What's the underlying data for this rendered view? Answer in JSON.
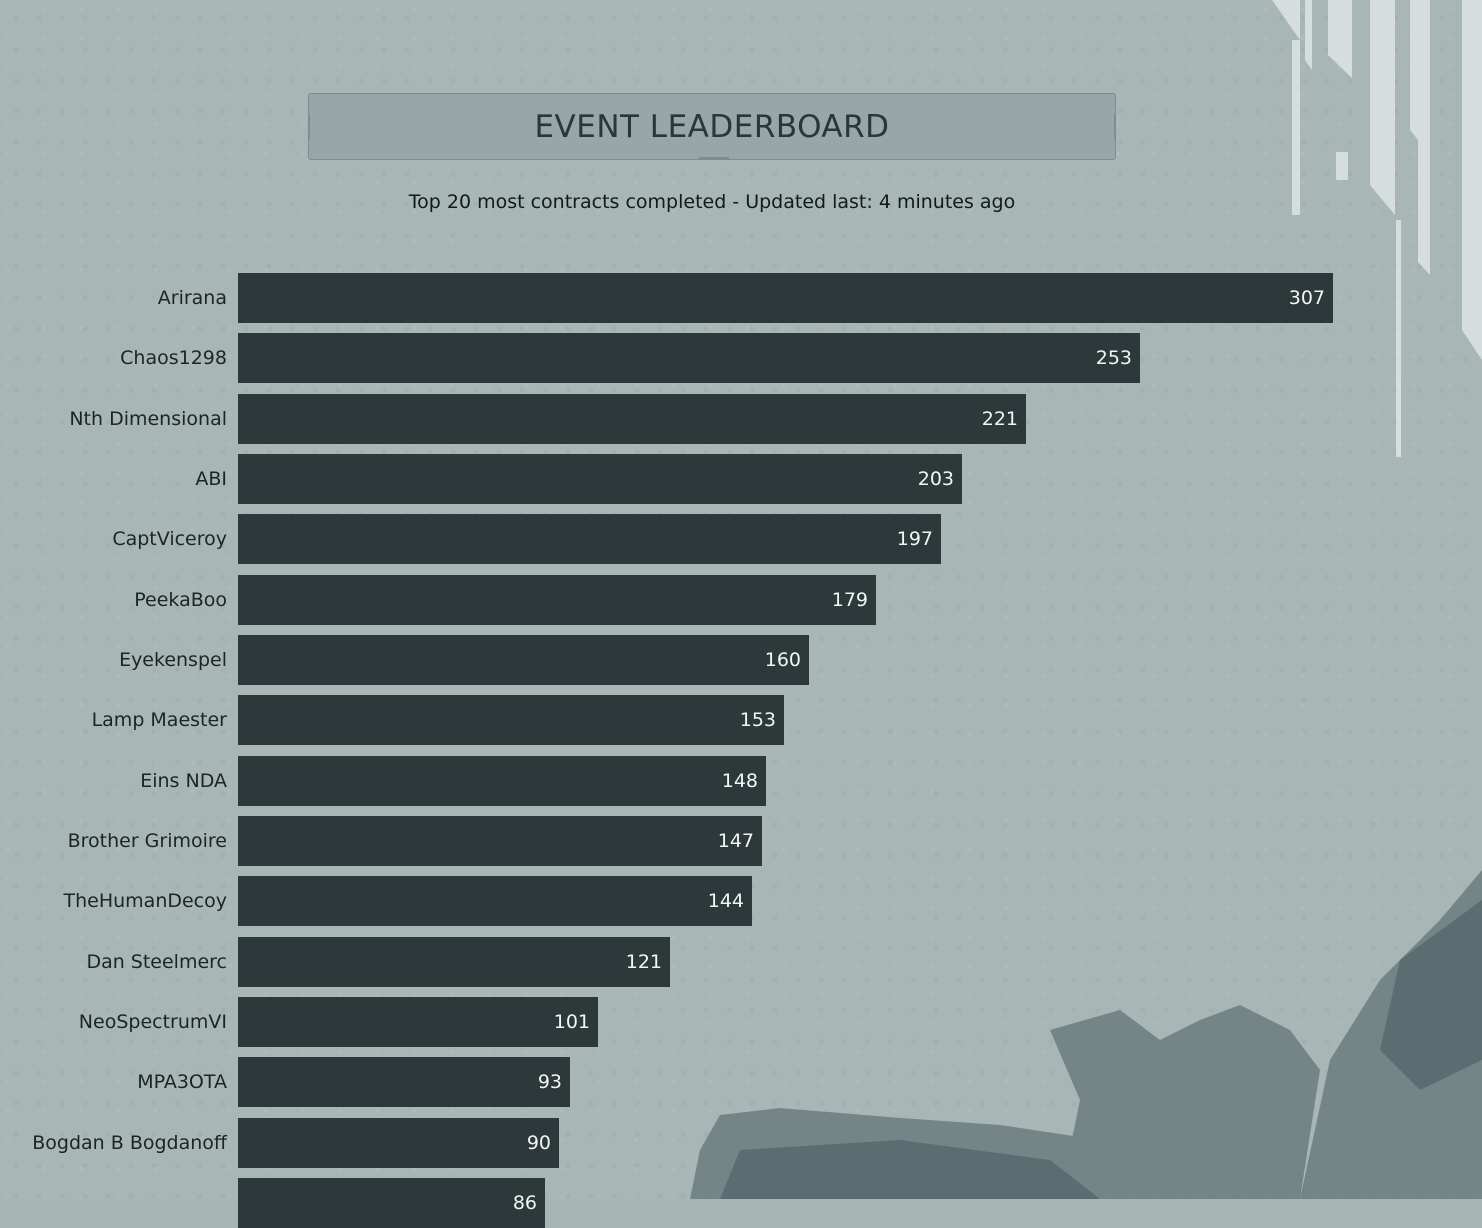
{
  "header": {
    "title": "EVENT LEADERBOARD",
    "subtitle": "Top 20 most contracts completed - Updated last: 4 minutes ago"
  },
  "colors": {
    "background": "#a8b6b5",
    "bar": "#2c3839",
    "bar_text": "#f2f5f4",
    "label_text": "#1c2526",
    "title_box": "#97a6a8"
  },
  "chart_data": {
    "type": "bar",
    "orientation": "horizontal",
    "title": "EVENT LEADERBOARD",
    "subtitle": "Top 20 most contracts completed - Updated last: 4 minutes ago",
    "xlabel": "",
    "ylabel": "",
    "xlim": [
      0,
      307
    ],
    "grid": false,
    "categories": [
      "Arirana",
      "Chaos1298",
      "Nth Dimensional",
      "ABI",
      "CaptViceroy",
      "PeekaBoo",
      "Eyekenspel",
      "Lamp Maester",
      "Eins NDA",
      "Brother Grimoire",
      "TheHumanDecoy",
      "Dan Steelmerc",
      "NeoSpectrumVI",
      "MPA3OTA",
      "Bogdan B Bogdanoff",
      ""
    ],
    "values": [
      307,
      253,
      221,
      203,
      197,
      179,
      160,
      153,
      148,
      147,
      144,
      121,
      101,
      93,
      90,
      86
    ]
  }
}
